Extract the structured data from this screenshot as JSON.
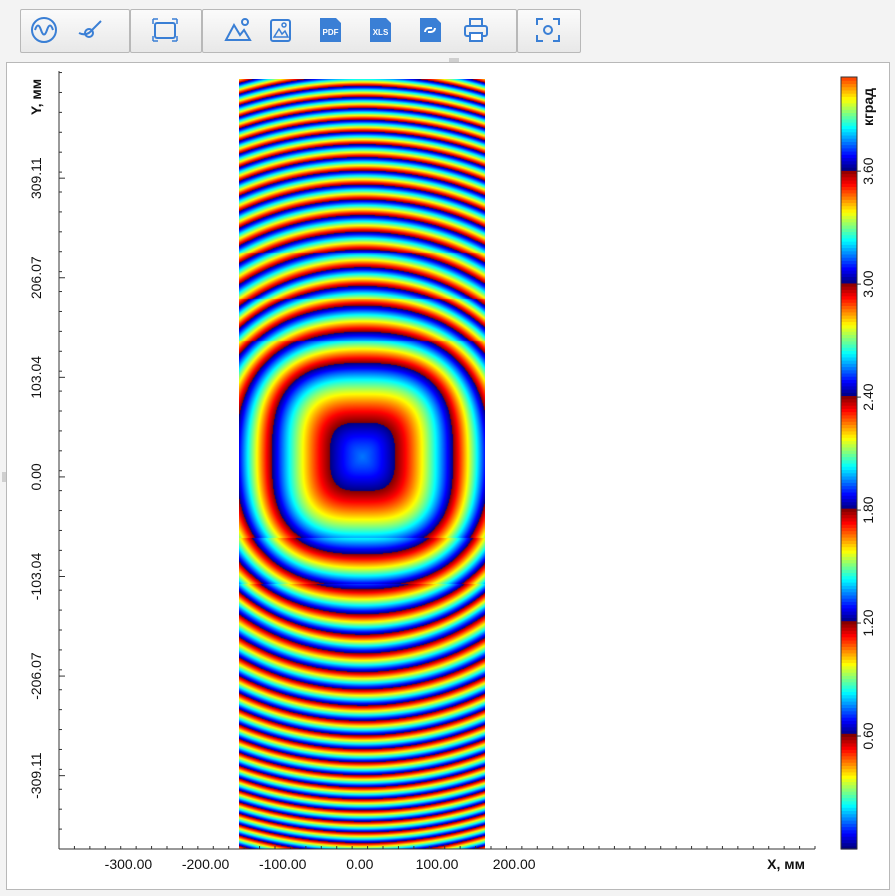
{
  "toolbar": {
    "buttons": [
      {
        "icon": "waveform-icon"
      },
      {
        "icon": "cursor-probe-icon"
      },
      {
        "icon": "frame-select-icon"
      },
      {
        "icon": "landscape-image-icon"
      },
      {
        "icon": "image-export-icon"
      },
      {
        "icon": "pdf-export-icon",
        "label": "PDF"
      },
      {
        "icon": "xls-export-icon",
        "label": "XLS"
      },
      {
        "icon": "link-copy-icon"
      },
      {
        "icon": "print-icon"
      },
      {
        "icon": "fit-to-window-icon"
      }
    ],
    "accent": "#3a7fd5"
  },
  "chart_data": {
    "type": "heatmap",
    "title": "",
    "xlabel": "X, мм",
    "ylabel": "Y, мм",
    "x_ticks": [
      "-300.00",
      "-200.00",
      "-100.00",
      "0.00",
      "100.00",
      "200.00"
    ],
    "x_tick_values": [
      -300,
      -200,
      -100,
      0,
      100,
      200
    ],
    "y_ticks": [
      "309.11",
      "206.07",
      "103.04",
      "0.00",
      "-103.04",
      "-206.07",
      "-309.11"
    ],
    "y_tick_values": [
      309.11,
      206.07,
      103.04,
      0,
      -103.04,
      -206.07,
      -309.11
    ],
    "xlim": [
      -390,
      590
    ],
    "ylim": [
      -385,
      420
    ],
    "data_extent": {
      "x": [
        -157,
        162
      ],
      "y": [
        -385,
        412
      ]
    },
    "colorbar": {
      "label": "кград",
      "ticks": [
        "0.60",
        "1.20",
        "1.80",
        "2.40",
        "3.00",
        "3.60"
      ],
      "tick_values": [
        0.6,
        1.2,
        1.8,
        2.4,
        3.0,
        3.6
      ],
      "range": [
        0,
        4.1
      ],
      "colormap": "jet-cyclic"
    },
    "grid": false,
    "legend": "colorbar-right"
  }
}
